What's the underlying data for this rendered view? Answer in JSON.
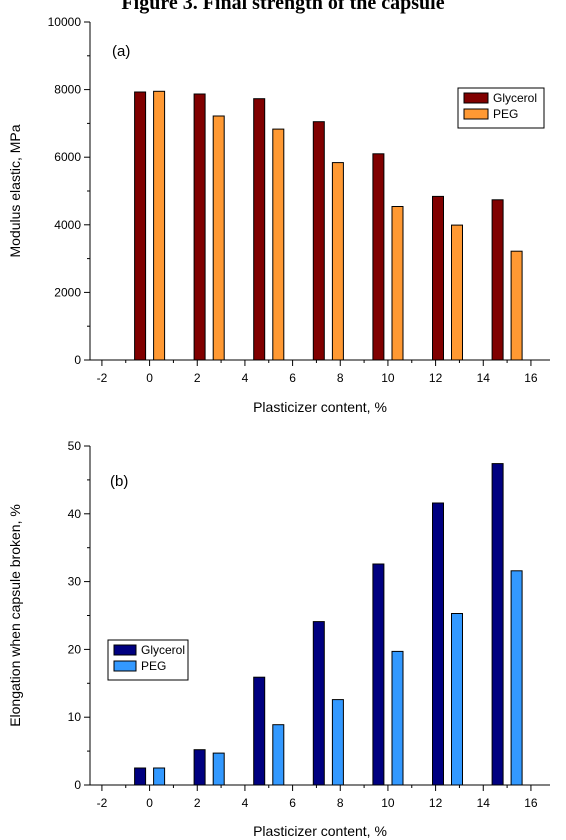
{
  "caption": "Figure 3. Final strength of the capsule",
  "chart_data": [
    {
      "type": "bar",
      "panel_label": "(a)",
      "categories": [
        0,
        2.5,
        5,
        7.5,
        10,
        12.5,
        15
      ],
      "series": [
        {
          "name": "Glycerol",
          "color": "#800000",
          "x": [
            -0.4,
            2.1,
            4.6,
            7.1,
            9.6,
            12.1,
            14.6
          ],
          "values": [
            7930,
            7870,
            7730,
            7050,
            6100,
            4840,
            4740
          ]
        },
        {
          "name": "PEG",
          "color": "#ff9933",
          "x": [
            0.4,
            2.9,
            5.4,
            7.9,
            10.4,
            12.9,
            15.4
          ],
          "values": [
            7950,
            7220,
            6830,
            5840,
            4540,
            3990,
            3220
          ]
        }
      ],
      "xlabel": "Plasticizer content, %",
      "ylabel": "Modulus elastic, MPa",
      "xlim": [
        -2.5,
        16.8
      ],
      "ylim": [
        0,
        10000
      ],
      "xticks": [
        -2,
        0,
        2,
        4,
        6,
        8,
        10,
        12,
        14,
        16
      ],
      "yticks": [
        0,
        2000,
        4000,
        6000,
        8000,
        10000
      ],
      "legend_position": "top-right",
      "grid": false
    },
    {
      "type": "bar",
      "panel_label": "(b)",
      "categories": [
        0,
        2.5,
        5,
        7.5,
        10,
        12.5,
        15
      ],
      "series": [
        {
          "name": "Glycerol",
          "color": "#000080",
          "x": [
            -0.4,
            2.1,
            4.6,
            7.1,
            9.6,
            12.1,
            14.6
          ],
          "values": [
            2.5,
            5.2,
            15.9,
            24.1,
            32.6,
            41.6,
            47.4
          ]
        },
        {
          "name": "PEG",
          "color": "#3399ff",
          "x": [
            0.4,
            2.9,
            5.4,
            7.9,
            10.4,
            12.9,
            15.4
          ],
          "values": [
            2.5,
            4.7,
            8.9,
            12.6,
            19.7,
            25.3,
            31.6
          ]
        }
      ],
      "xlabel": "Plasticizer content, %",
      "ylabel": "Elongation when capsule broken, %",
      "xlim": [
        -2.5,
        16.8
      ],
      "ylim": [
        0,
        50
      ],
      "xticks": [
        -2,
        0,
        2,
        4,
        6,
        8,
        10,
        12,
        14,
        16
      ],
      "yticks": [
        0,
        10,
        20,
        30,
        40,
        50
      ],
      "legend_position": "middle-left",
      "grid": false
    }
  ]
}
